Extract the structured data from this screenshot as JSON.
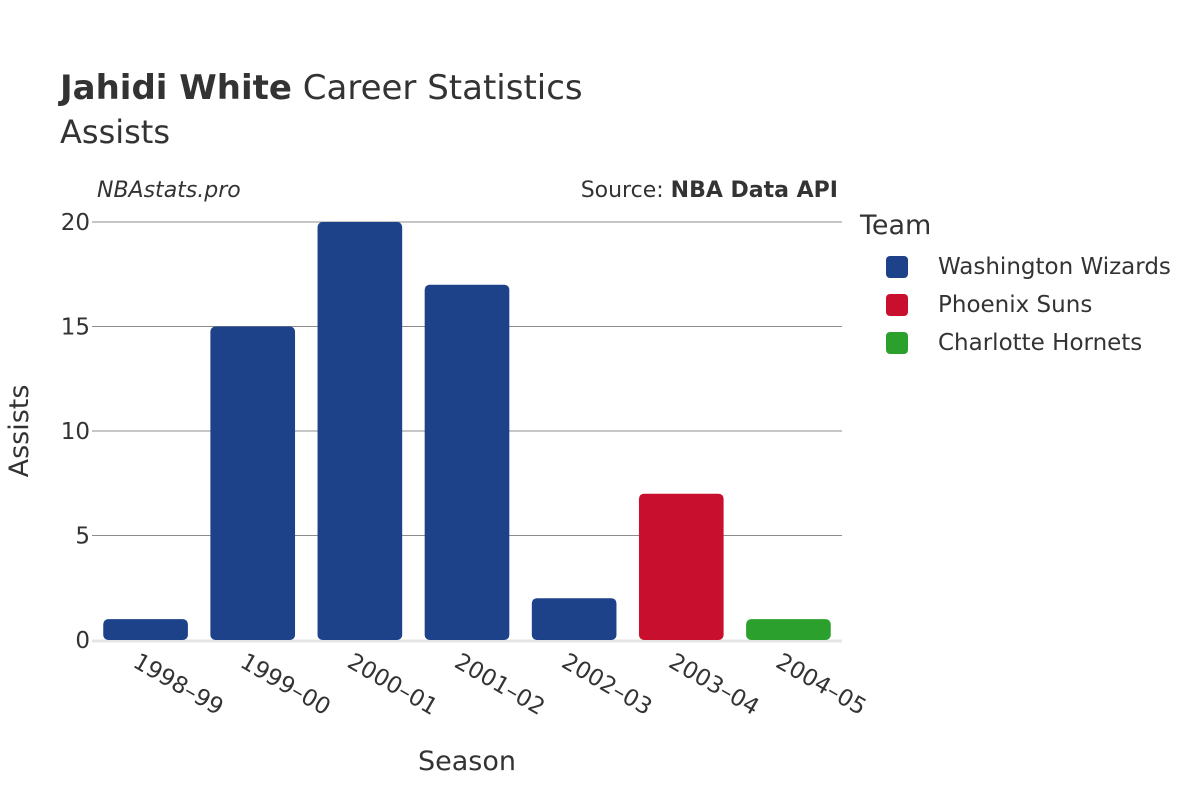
{
  "header": {
    "title_bold": "Jahidi White",
    "title_rest": " Career Statistics",
    "subtitle": "Assists",
    "watermark": "NBAstats.pro",
    "source_prefix": "Source: ",
    "source_bold": "NBA Data API"
  },
  "legend": {
    "title": "Team",
    "items": [
      {
        "label": "Washington Wizards",
        "color": "#1d4289"
      },
      {
        "label": "Phoenix Suns",
        "color": "#c8102e"
      },
      {
        "label": "Charlotte Hornets",
        "color": "#2ca02c"
      }
    ]
  },
  "chart_data": {
    "type": "bar",
    "title": "Jahidi White Career Statistics",
    "subtitle": "Assists",
    "xlabel": "Season",
    "ylabel": "Assists",
    "ylim": [
      0,
      20
    ],
    "yticks": [
      0,
      5,
      10,
      15,
      20
    ],
    "categories": [
      "1998–99",
      "1999–00",
      "2000–01",
      "2001–02",
      "2002–03",
      "2003–04",
      "2004–05"
    ],
    "values": [
      1,
      15,
      20,
      17,
      2,
      7,
      1
    ],
    "teams": [
      "Washington Wizards",
      "Washington Wizards",
      "Washington Wizards",
      "Washington Wizards",
      "Washington Wizards",
      "Phoenix Suns",
      "Charlotte Hornets"
    ],
    "legend_position": "right",
    "grid": true
  }
}
